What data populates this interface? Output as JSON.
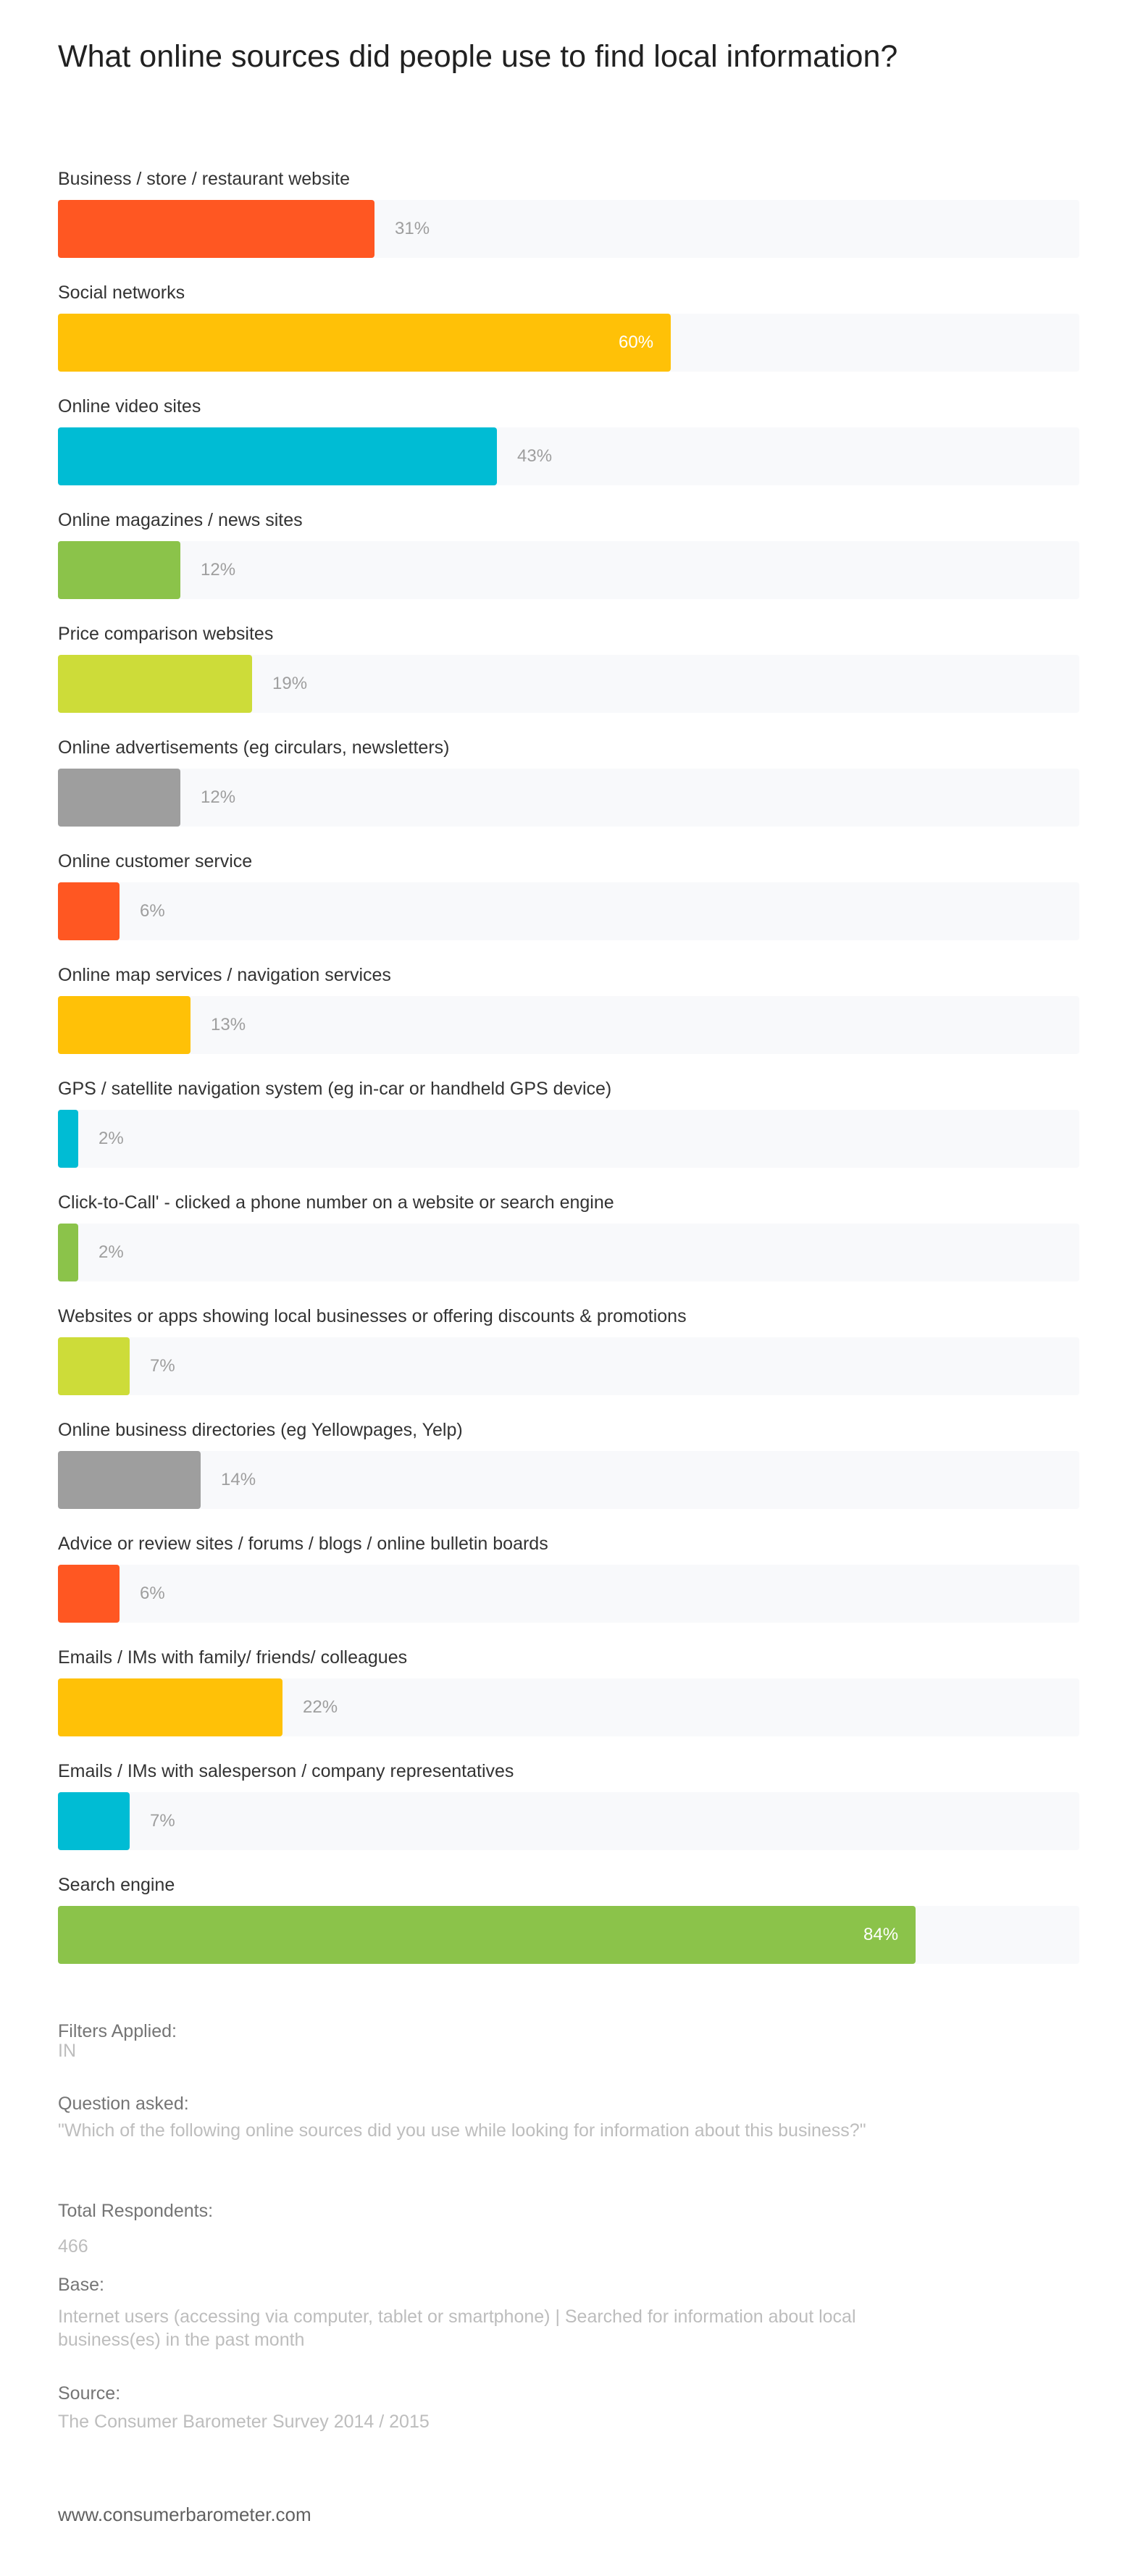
{
  "page_title": "What online sources did people use to find local information?",
  "chart_data": {
    "type": "bar",
    "orientation": "horizontal",
    "title": "What online sources did people use to find local information?",
    "xlim": [
      0,
      100
    ],
    "unit": "%",
    "categories": [
      "Business / store / restaurant website",
      "Social networks",
      "Online video sites",
      "Online magazines / news sites",
      "Price comparison websites",
      "Online advertisements (eg circulars, newsletters)",
      "Online customer service",
      "Online map services / navigation services",
      "GPS / satellite navigation system (eg in-car or handheld GPS device)",
      "Click-to-Call' - clicked a phone number on a website or search engine",
      "Websites or apps showing local businesses or offering discounts & promotions",
      "Online business directories (eg Yellowpages, Yelp)",
      "Advice or review sites / forums / blogs / online bulletin boards",
      "Emails / IMs with family/ friends/ colleagues",
      "Emails / IMs with salesperson / company representatives",
      "Search engine"
    ],
    "values": [
      31,
      60,
      43,
      12,
      19,
      12,
      6,
      13,
      2,
      2,
      7,
      14,
      6,
      22,
      7,
      84
    ],
    "value_labels": [
      "31%",
      "60%",
      "43%",
      "12%",
      "19%",
      "12%",
      "6%",
      "13%",
      "2%",
      "2%",
      "7%",
      "14%",
      "6%",
      "22%",
      "7%",
      "84%"
    ],
    "colors": [
      "#FF5722",
      "#FFC107",
      "#00BCD4",
      "#8BC34A",
      "#CDDC39",
      "#9E9E9E",
      "#FF5722",
      "#FFC107",
      "#00BCD4",
      "#8BC34A",
      "#CDDC39",
      "#9E9E9E",
      "#FF5722",
      "#FFC107",
      "#00BCD4",
      "#8BC34A"
    ]
  },
  "meta": {
    "filters_label": "Filters Applied:",
    "filters_value": "IN",
    "question_label": "Question asked:",
    "question_value": "\"Which of the following online sources did you use while looking for information about this business?\"",
    "respondents_label": "Total Respondents:",
    "respondents_value": "466",
    "base_label": "Base:",
    "base_value": "Internet users (accessing via computer, tablet or smartphone) | Searched for information about local business(es) in the past month",
    "source_label": "Source:",
    "source_value": "The Consumer Barometer Survey 2014 / 2015"
  },
  "footer_url": "www.consumerbarometer.com"
}
